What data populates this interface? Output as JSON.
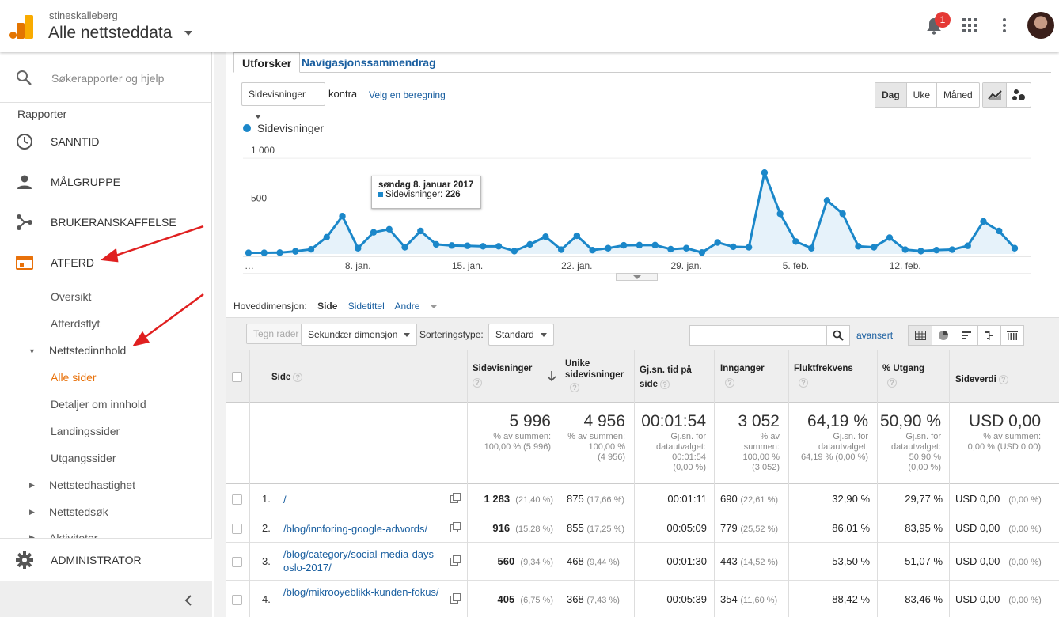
{
  "header": {
    "account": "stineskalleberg",
    "property": "Alle nettsteddata",
    "notification_count": "1"
  },
  "sidebar": {
    "search_placeholder": "Søkerapporter og hjelp",
    "reports_label": "Rapporter",
    "nav": {
      "realtime": "SANNTID",
      "audience": "MÅLGRUPPE",
      "acquisition": "BRUKERANSKAFFELSE",
      "behavior": "ATFERD",
      "admin": "ADMINISTRATOR"
    },
    "behavior_items": {
      "overview": "Oversikt",
      "flow": "Atferdsflyt",
      "site_content": "Nettstedinnhold",
      "all_pages": "Alle sider",
      "content_drilldown": "Detaljer om innhold",
      "landing_pages": "Landingssider",
      "exit_pages": "Utgangssider",
      "site_speed": "Nettstedhastighet",
      "site_search": "Nettstedsøk",
      "events": "Aktiviteter"
    }
  },
  "main": {
    "tabs": [
      "Utforsker",
      "Navigasjonssammendrag"
    ],
    "metric_select": "Sidevisninger",
    "versus": "kontra",
    "choose_metric": "Velg en beregning",
    "periods": [
      "Dag",
      "Uke",
      "Måned"
    ],
    "dimensions_label": "Hoveddimensjon:",
    "dimensions": [
      "Side",
      "Sidetittel",
      "Andre"
    ],
    "plot_rows": "Tegn rader",
    "secondary_dimension": "Sekundær dimensjon",
    "sort_label": "Sorteringstype:",
    "sort_value": "Standard",
    "advanced": "avansert"
  },
  "chart_data": {
    "type": "line",
    "series": [
      {
        "name": "Sidevisninger",
        "values": [
          12,
          12,
          14,
          28,
          48,
          175,
          395,
          60,
          226,
          258,
          70,
          240,
          100,
          88,
          85,
          80,
          80,
          30,
          100,
          180,
          45,
          190,
          40,
          60,
          90,
          92,
          92,
          50,
          60,
          15,
          120,
          75,
          70,
          850,
          420,
          130,
          60,
          560,
          420,
          80,
          70,
          170,
          45,
          30,
          40,
          45,
          85,
          340,
          240,
          60
        ]
      }
    ],
    "x_ticks": [
      "…",
      "8. jan.",
      "15. jan.",
      "22. jan.",
      "29. jan.",
      "5. feb.",
      "12. feb."
    ],
    "y_ticks": [
      "500",
      "1 000"
    ],
    "ylim": [
      0,
      1100
    ],
    "color": "#1b87c9"
  },
  "tooltip": {
    "date": "søndag 8. januar 2017",
    "label": "Sidevisninger:",
    "value": "226"
  },
  "table": {
    "headers": {
      "page": "Side",
      "pageviews": "Sidevisninger",
      "unique": "Unike sidevisninger",
      "avg_time": "Gj.sn. tid på side",
      "entrances": "Innganger",
      "bounce": "Fluktfrekvens",
      "exit": "% Utgang",
      "value": "Sideverdi"
    },
    "totals": {
      "pageviews": "5 996",
      "pageviews_sub": [
        "% av summen:",
        "100,00 % (5 996)"
      ],
      "unique": "4 956",
      "unique_sub": [
        "% av summen:",
        "100,00 %",
        "(4 956)"
      ],
      "avg_time": "00:01:54",
      "avg_time_sub": [
        "Gj.sn. for",
        "datautvalget:",
        "00:01:54",
        "(0,00 %)"
      ],
      "entrances": "3 052",
      "entrances_sub": [
        "% av",
        "summen:",
        "100,00 %",
        "(3 052)"
      ],
      "bounce": "64,19 %",
      "bounce_sub": [
        "Gj.sn. for",
        "datautvalget:",
        "64,19 % (0,00 %)"
      ],
      "exit": "50,90 %",
      "exit_sub": [
        "Gj.sn. for",
        "datautvalget:",
        "50,90 %",
        "(0,00 %)"
      ],
      "value": "USD 0,00",
      "value_sub": [
        "% av summen:",
        "0,00 % (USD 0,00)"
      ]
    },
    "rows": [
      {
        "num": "1.",
        "page": "/",
        "pv": "1 283",
        "pv_pct": "(21,40 %)",
        "u": "875",
        "u_pct": "(17,66 %)",
        "t": "00:01:11",
        "e": "690",
        "e_pct": "(22,61 %)",
        "b": "32,90 %",
        "x": "29,77 %",
        "v": "USD 0,00",
        "v_pct": "(0,00 %)"
      },
      {
        "num": "2.",
        "page": "/blog/innforing-google-adwords/",
        "pv": "916",
        "pv_pct": "(15,28 %)",
        "u": "855",
        "u_pct": "(17,25 %)",
        "t": "00:05:09",
        "e": "779",
        "e_pct": "(25,52 %)",
        "b": "86,01 %",
        "x": "83,95 %",
        "v": "USD 0,00",
        "v_pct": "(0,00 %)"
      },
      {
        "num": "3.",
        "page": "/blog/category/social-media-days-oslo-2017/",
        "pv": "560",
        "pv_pct": "(9,34 %)",
        "u": "468",
        "u_pct": "(9,44 %)",
        "t": "00:01:30",
        "e": "443",
        "e_pct": "(14,52 %)",
        "b": "53,50 %",
        "x": "51,07 %",
        "v": "USD 0,00",
        "v_pct": "(0,00 %)"
      },
      {
        "num": "4.",
        "page": "/blog/mikrooyeblikk-kunden-fokus/",
        "pv": "405",
        "pv_pct": "(6,75 %)",
        "u": "368",
        "u_pct": "(7,43 %)",
        "t": "00:05:39",
        "e": "354",
        "e_pct": "(11,60 %)",
        "b": "88,42 %",
        "x": "83,46 %",
        "v": "USD 0,00",
        "v_pct": "(0,00 %)"
      }
    ]
  }
}
